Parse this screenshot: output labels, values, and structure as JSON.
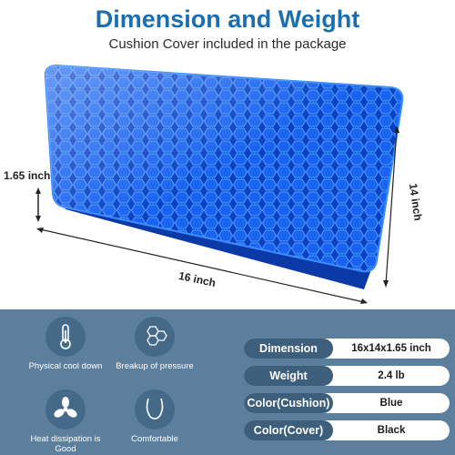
{
  "header": {
    "title": "Dimension and Weight",
    "subtitle": "Cushion Cover included in the package"
  },
  "product": {
    "height_label": "1.65 inch",
    "width_label": "16 inch",
    "depth_label": "14 inch",
    "color": "#0f55d9"
  },
  "features": [
    {
      "label": "Physical cool down",
      "icon": "thermometer-icon"
    },
    {
      "label": "Breakup of pressure",
      "icon": "honeycomb-icon"
    },
    {
      "label": "Heat dissipation is Good",
      "icon": "fan-icon"
    },
    {
      "label": "Comfortable",
      "icon": "body-icon"
    }
  ],
  "specs": [
    {
      "key": "Dimension",
      "value": "16x14x1.65 inch"
    },
    {
      "key": "Weight",
      "value": "2.4 lb"
    },
    {
      "key": "Color(Cushion)",
      "value": "Blue"
    },
    {
      "key": "Color(Cover)",
      "value": "Black"
    }
  ],
  "colors": {
    "accent": "#1b6fb0",
    "panel": "#5b7f9d",
    "pill": "#3e5f7b"
  }
}
